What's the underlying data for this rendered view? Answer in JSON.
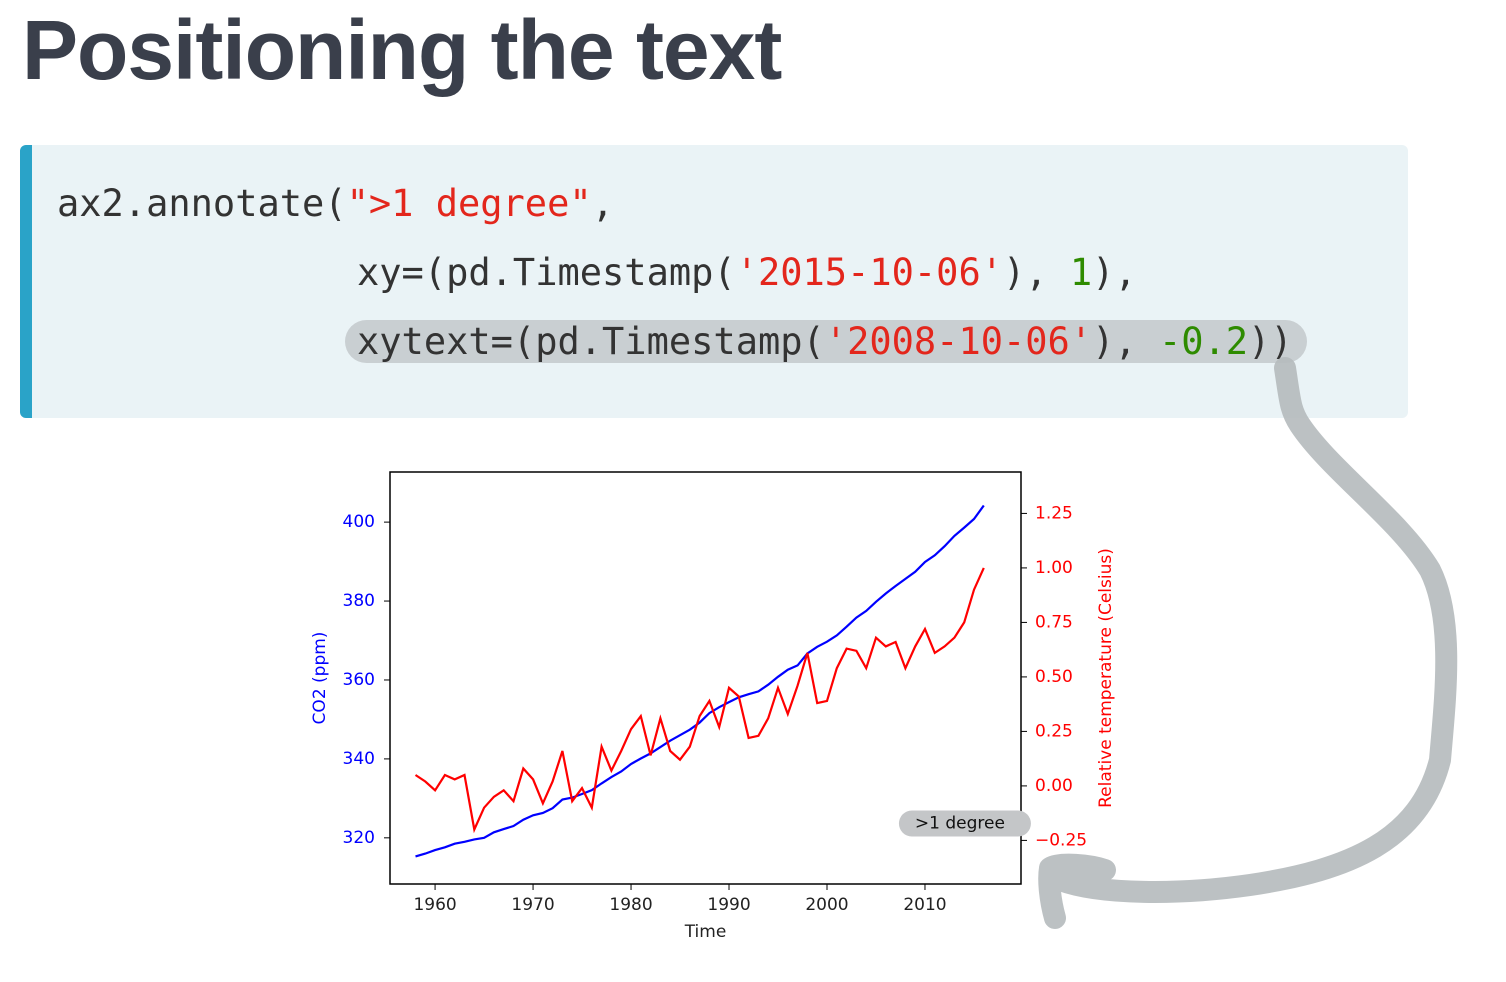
{
  "header": {
    "title": "Positioning the text"
  },
  "code": {
    "colors": {
      "plain": "#333333",
      "string": "#e3261c",
      "number": "#2e8b00"
    },
    "lines": [
      [
        {
          "text": "ax2.annotate(",
          "kind": "plain"
        },
        {
          "text": "\">1 degree\"",
          "kind": "string"
        },
        {
          "text": ",",
          "kind": "plain"
        }
      ],
      [
        {
          "text": "xy=(pd.Timestamp(",
          "kind": "plain"
        },
        {
          "text": "'2015-10-06'",
          "kind": "string"
        },
        {
          "text": "), ",
          "kind": "plain"
        },
        {
          "text": "1",
          "kind": "number"
        },
        {
          "text": "),",
          "kind": "plain"
        }
      ],
      [
        {
          "text": "xytext=(pd.Timestamp(",
          "kind": "plain"
        },
        {
          "text": "'2008-10-06'",
          "kind": "string"
        },
        {
          "text": "), ",
          "kind": "plain"
        },
        {
          "text": "-0.2",
          "kind": "number"
        },
        {
          "text": "))",
          "kind": "plain"
        }
      ]
    ]
  },
  "chart_data": {
    "type": "line",
    "x_label": "Time",
    "y_label": "CO2 (ppm)",
    "y2_label": "Relative temperature (Celsius)",
    "x": [
      1958,
      1959,
      1960,
      1961,
      1962,
      1963,
      1964,
      1965,
      1966,
      1967,
      1968,
      1969,
      1970,
      1971,
      1972,
      1973,
      1974,
      1975,
      1976,
      1977,
      1978,
      1979,
      1980,
      1981,
      1982,
      1983,
      1984,
      1985,
      1986,
      1987,
      1988,
      1989,
      1990,
      1991,
      1992,
      1993,
      1994,
      1995,
      1996,
      1997,
      1998,
      1999,
      2000,
      2001,
      2002,
      2003,
      2004,
      2005,
      2006,
      2007,
      2008,
      2009,
      2010,
      2011,
      2012,
      2013,
      2014,
      2015,
      2016
    ],
    "series": [
      {
        "name": "CO2 (ppm)",
        "color": "#0000ff",
        "axis": "y",
        "values": [
          315.3,
          316,
          316.9,
          317.6,
          318.5,
          319,
          319.6,
          320,
          321.4,
          322.2,
          323,
          324.6,
          325.7,
          326.3,
          327.5,
          329.7,
          330.2,
          331.1,
          332.1,
          333.8,
          335.4,
          336.8,
          338.7,
          340.1,
          341.4,
          343,
          344.6,
          346,
          347.4,
          349.2,
          351.6,
          353.1,
          354.4,
          355.6,
          356.4,
          357.1,
          358.8,
          360.8,
          362.6,
          363.7,
          366.7,
          368.4,
          369.7,
          371.3,
          373.5,
          375.8,
          377.5,
          379.8,
          381.9,
          383.8,
          385.6,
          387.4,
          389.9,
          391.6,
          393.9,
          396.5,
          398.6,
          400.8,
          404.2
        ]
      },
      {
        "name": "Relative temperature (Celsius)",
        "color": "#ff0000",
        "axis": "y2",
        "values": [
          0.05,
          0.02,
          -0.02,
          0.05,
          0.03,
          0.05,
          -0.2,
          -0.1,
          -0.05,
          -0.02,
          -0.07,
          0.08,
          0.03,
          -0.08,
          0.02,
          0.16,
          -0.07,
          -0.01,
          -0.1,
          0.18,
          0.07,
          0.16,
          0.26,
          0.32,
          0.14,
          0.31,
          0.16,
          0.12,
          0.18,
          0.32,
          0.39,
          0.27,
          0.45,
          0.41,
          0.22,
          0.23,
          0.31,
          0.45,
          0.33,
          0.46,
          0.61,
          0.38,
          0.39,
          0.54,
          0.63,
          0.62,
          0.54,
          0.68,
          0.64,
          0.66,
          0.54,
          0.64,
          0.72,
          0.61,
          0.64,
          0.68,
          0.75,
          0.9,
          1.0
        ]
      }
    ],
    "xlim": [
      1955.4,
      2019.8
    ],
    "xticks": [
      1960,
      1970,
      1980,
      1990,
      2000,
      2010
    ],
    "ylim": [
      308.3,
      412.7
    ],
    "yticks": [
      320,
      340,
      360,
      380,
      400
    ],
    "y2lim": [
      -0.45,
      1.44
    ],
    "y2ticks": [
      {
        "value": -0.25,
        "label": "−0.25"
      },
      {
        "value": 0,
        "label": "0.00"
      },
      0.25,
      {
        "value": 0.5,
        "label": "0.50"
      },
      0.75,
      {
        "value": 1,
        "label": "1.00"
      },
      1.25
    ],
    "annotation": {
      "text": ">1 degree",
      "x": 2008.77,
      "y": -0.2
    }
  }
}
